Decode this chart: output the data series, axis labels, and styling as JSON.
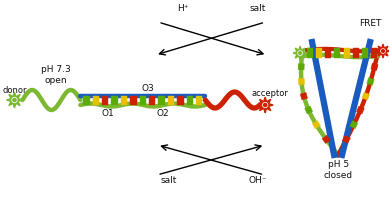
{
  "bg_color": "#ffffff",
  "labels": {
    "donor": "donor",
    "acceptor": "acceptor",
    "O1": "O1",
    "O2": "O2",
    "O3": "O3",
    "pH73": "pH 7.3\nopen",
    "pH5": "pH 5\nclosed",
    "FRET": "FRET",
    "Hplus": "H⁺",
    "OHminus": "OH⁻",
    "salt_top": "salt",
    "salt_bottom": "salt"
  },
  "colors": {
    "green_strand": "#7db832",
    "blue_strand": "#1a5bbf",
    "red_strand": "#cc2200",
    "donor_star": "#7db832",
    "acceptor_star": "#cc2200",
    "text": "#111111",
    "base_green": "#5aaa00",
    "base_yellow": "#e8c000",
    "base_red": "#cc2200"
  },
  "fig_width": 3.89,
  "fig_height": 1.99
}
